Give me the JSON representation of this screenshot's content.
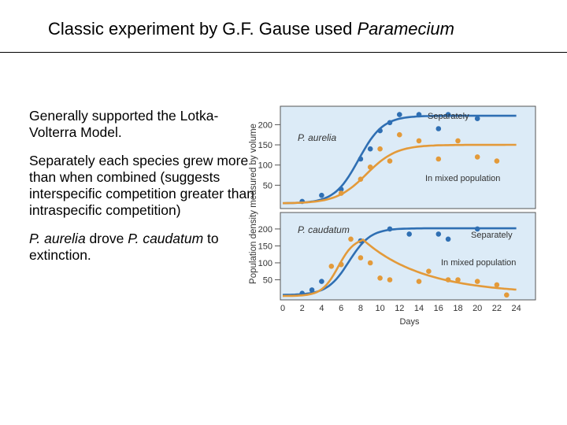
{
  "slide": {
    "title_prefix": "Classic experiment by G.F. Gause used ",
    "title_italic": "Paramecium",
    "bullets": [
      {
        "text": "Generally supported the Lotka-Volterra Model."
      },
      {
        "text": "Separately each species grew more than when combined (suggests interspecific competition greater than intraspecific competition)"
      },
      {
        "italic1": "P. aurelia",
        "mid": " drove ",
        "italic2": "P. caudatum",
        "end": " to extinction."
      }
    ]
  },
  "chart_data": [
    {
      "type": "scatter",
      "panel": "top",
      "species_label": "P. aurelia",
      "ylabel": "Population density measured by volume",
      "xlabel": "",
      "xlim": [
        0,
        25
      ],
      "ylim": [
        0,
        230
      ],
      "yticks": [
        50,
        100,
        150,
        200
      ],
      "series": [
        {
          "name": "Separately",
          "color": "#2f6fb3",
          "x": [
            2,
            4,
            6,
            8,
            9,
            10,
            11,
            12,
            14,
            16,
            17,
            20
          ],
          "y": [
            10,
            25,
            40,
            115,
            140,
            185,
            205,
            225,
            225,
            190,
            225,
            215
          ]
        },
        {
          "name": "In mixed population",
          "color": "#e39a3a",
          "x": [
            6,
            8,
            9,
            10,
            11,
            12,
            14,
            16,
            18,
            20,
            22
          ],
          "y": [
            30,
            65,
            95,
            140,
            110,
            175,
            160,
            115,
            160,
            120,
            110
          ]
        }
      ]
    },
    {
      "type": "scatter",
      "panel": "bottom",
      "species_label": "P. caudatum",
      "xlabel": "Days",
      "xlim": [
        0,
        25
      ],
      "xticks": [
        0,
        2,
        4,
        6,
        8,
        10,
        12,
        14,
        16,
        18,
        20,
        22,
        24
      ],
      "ylim": [
        0,
        230
      ],
      "yticks": [
        50,
        100,
        150,
        200
      ],
      "series": [
        {
          "name": "Separately",
          "color": "#2f6fb3",
          "x": [
            2,
            3,
            4,
            6,
            8,
            11,
            13,
            16,
            17,
            20
          ],
          "y": [
            10,
            20,
            45,
            95,
            165,
            200,
            185,
            185,
            170,
            200
          ]
        },
        {
          "name": "In mixed population",
          "color": "#e39a3a",
          "x": [
            5,
            6,
            7,
            8,
            9,
            10,
            11,
            14,
            15,
            17,
            18,
            20,
            22,
            23
          ],
          "y": [
            90,
            95,
            170,
            115,
            100,
            55,
            50,
            45,
            75,
            50,
            50,
            45,
            35,
            5
          ]
        }
      ]
    }
  ]
}
